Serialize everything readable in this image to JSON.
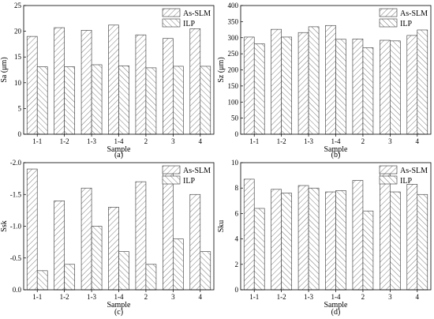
{
  "chart_data": [
    {
      "type": "bar",
      "panel_label": "(a)",
      "xlabel": "Sample",
      "ylabel": "Sa (μm)",
      "ylim": [
        0,
        25
      ],
      "yticks": [
        0,
        5,
        10,
        15,
        20,
        25
      ],
      "ytick_labels": [
        "0",
        "5",
        "10",
        "15",
        "20",
        "25"
      ],
      "categories": [
        "1-1",
        "1-2",
        "1-3",
        "1-4",
        "2",
        "3",
        "4"
      ],
      "series": [
        {
          "name": "As-SLM",
          "values": [
            19.0,
            20.7,
            20.2,
            21.2,
            19.3,
            18.6,
            20.5
          ]
        },
        {
          "name": "ILP",
          "values": [
            13.1,
            13.1,
            13.5,
            13.3,
            12.9,
            13.2,
            13.2
          ]
        }
      ],
      "legend": "top-right",
      "grid": false
    },
    {
      "type": "bar",
      "panel_label": "(b)",
      "xlabel": "Sample",
      "ylabel": "Sz (μm)",
      "ylim": [
        0,
        400
      ],
      "yticks": [
        0,
        50,
        100,
        150,
        200,
        250,
        300,
        350,
        400
      ],
      "ytick_labels": [
        "0",
        "50",
        "100",
        "150",
        "200",
        "250",
        "300",
        "350",
        "400"
      ],
      "categories": [
        "1-1",
        "1-2",
        "1-3",
        "1-4",
        "2",
        "3",
        "4"
      ],
      "series": [
        {
          "name": "As-SLM",
          "values": [
            302,
            326,
            316,
            338,
            296,
            292,
            307
          ]
        },
        {
          "name": "ILP",
          "values": [
            281,
            302,
            334,
            295,
            269,
            290,
            324
          ]
        }
      ],
      "legend": "top-right",
      "grid": false
    },
    {
      "type": "bar",
      "panel_label": "(c)",
      "xlabel": "Sample",
      "ylabel": "Ssk",
      "ylim": [
        0,
        -2.0
      ],
      "yticks": [
        0,
        -0.5,
        -1.0,
        -1.5,
        -2.0
      ],
      "ytick_labels": [
        "0.0",
        "-0.5",
        "-1.0",
        "-1.5",
        "-2.0"
      ],
      "categories": [
        "1-1",
        "1-2",
        "1-3",
        "1-4",
        "2",
        "3",
        "4"
      ],
      "series": [
        {
          "name": "As-SLM",
          "values": [
            -1.9,
            -1.4,
            -1.6,
            -1.3,
            -1.7,
            -1.9,
            -1.5
          ]
        },
        {
          "name": "ILP",
          "values": [
            -0.3,
            -0.4,
            -1.0,
            -0.6,
            -0.4,
            -0.8,
            -0.6
          ]
        }
      ],
      "legend": "top-right",
      "grid": false
    },
    {
      "type": "bar",
      "panel_label": "(d)",
      "xlabel": "Sample",
      "ylabel": "Sku",
      "ylim": [
        0,
        10
      ],
      "yticks": [
        0,
        2,
        4,
        6,
        8,
        10
      ],
      "ytick_labels": [
        "0",
        "2",
        "4",
        "6",
        "8",
        "10"
      ],
      "categories": [
        "1-1",
        "1-2",
        "1-3",
        "1-4",
        "2",
        "3",
        "4"
      ],
      "series": [
        {
          "name": "As-SLM",
          "values": [
            8.7,
            7.9,
            8.2,
            7.7,
            8.6,
            9.2,
            8.3
          ]
        },
        {
          "name": "ILP",
          "values": [
            6.4,
            7.6,
            8.0,
            7.8,
            6.2,
            7.7,
            7.5
          ]
        }
      ],
      "legend": "top-right",
      "grid": false
    }
  ]
}
